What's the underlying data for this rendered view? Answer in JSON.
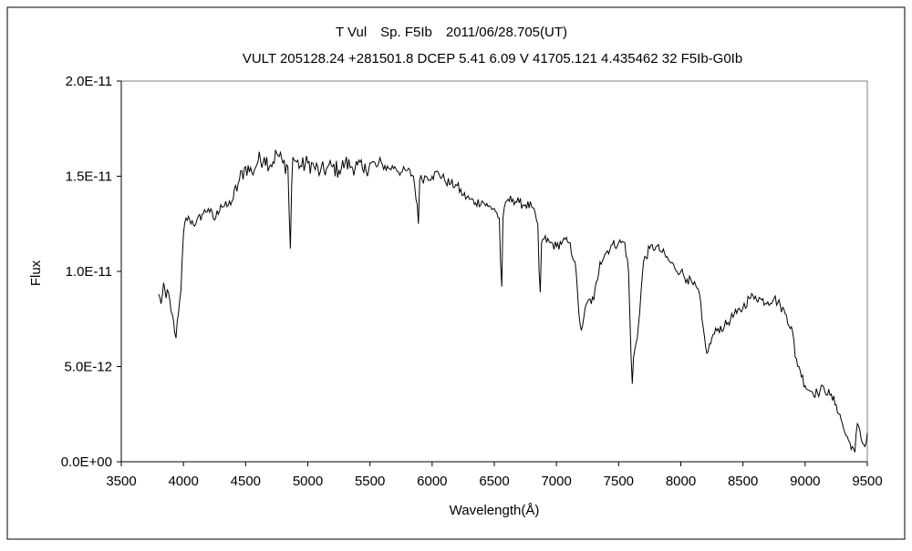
{
  "chart_data": {
    "type": "line",
    "title": "T Vul　Sp. F5Ib　2011/06/28.705(UT)",
    "subtitle": "VULT 205128.24 +281501.8 DCEP 5.41 6.09 V 41705.121 4.435462 32 F5Ib-G0Ib",
    "xlabel": "Wavelength(Å)",
    "ylabel": "Flux",
    "xlim": [
      3500,
      9500
    ],
    "ylim": [
      0,
      2e-11
    ],
    "x_ticks": [
      3500,
      4000,
      4500,
      5000,
      5500,
      6000,
      6500,
      7000,
      7500,
      8000,
      8500,
      9000,
      9500
    ],
    "x_tick_labels": [
      "3500",
      "4000",
      "4500",
      "5000",
      "5500",
      "6000",
      "6500",
      "7000",
      "7500",
      "8000",
      "8500",
      "9000",
      "9500"
    ],
    "y_ticks": [
      0,
      5e-12,
      1e-11,
      1.5e-11,
      2e-11
    ],
    "y_tick_labels": [
      "0.0E+00",
      "5.0E-12",
      "1.0E-11",
      "1.5E-11",
      "2.0E-11"
    ],
    "grid": false,
    "legend": "none",
    "series_color": "#000000",
    "series": [
      {
        "x": [
          3800,
          3820,
          3840,
          3860,
          3880,
          3900,
          3920,
          3940,
          3960,
          3980,
          4000,
          4020,
          4050,
          4100,
          4150,
          4200,
          4250,
          4300,
          4350,
          4400,
          4450,
          4500,
          4550,
          4600,
          4650,
          4700,
          4750,
          4800,
          4840,
          4850,
          4860,
          4870,
          4880,
          4900,
          4950,
          5000,
          5050,
          5100,
          5150,
          5200,
          5250,
          5300,
          5350,
          5400,
          5450,
          5500,
          5550,
          5600,
          5650,
          5700,
          5750,
          5800,
          5850,
          5880,
          5890,
          5900,
          5950,
          6000,
          6050,
          6100,
          6150,
          6200,
          6250,
          6300,
          6350,
          6400,
          6450,
          6500,
          6540,
          6550,
          6560,
          6570,
          6600,
          6650,
          6700,
          6750,
          6800,
          6850,
          6860,
          6870,
          6880,
          6900,
          6950,
          7000,
          7050,
          7100,
          7150,
          7180,
          7200,
          7220,
          7250,
          7300,
          7350,
          7400,
          7450,
          7500,
          7550,
          7580,
          7600,
          7610,
          7620,
          7650,
          7700,
          7750,
          7800,
          7850,
          7900,
          7950,
          8000,
          8050,
          8100,
          8150,
          8170,
          8200,
          8220,
          8250,
          8300,
          8350,
          8400,
          8450,
          8500,
          8550,
          8600,
          8650,
          8700,
          8750,
          8800,
          8850,
          8900,
          8920,
          8950,
          9000,
          9050,
          9100,
          9150,
          9200,
          9250,
          9300,
          9320,
          9350,
          9380,
          9400,
          9420,
          9450,
          9480,
          9500
        ],
        "y": [
          8.8e-12,
          8.3e-12,
          9.4e-12,
          8.6e-12,
          8.9e-12,
          7.9e-12,
          7.4e-12,
          6.5e-12,
          7.8e-12,
          9e-12,
          1.2e-11,
          1.28e-11,
          1.27e-11,
          1.25e-11,
          1.3e-11,
          1.33e-11,
          1.27e-11,
          1.35e-11,
          1.34e-11,
          1.38e-11,
          1.48e-11,
          1.55e-11,
          1.52e-11,
          1.58e-11,
          1.6e-11,
          1.56e-11,
          1.62e-11,
          1.57e-11,
          1.55e-11,
          1.3e-11,
          1.12e-11,
          1.45e-11,
          1.6e-11,
          1.58e-11,
          1.55e-11,
          1.57e-11,
          1.55e-11,
          1.52e-11,
          1.54e-11,
          1.55e-11,
          1.53e-11,
          1.57e-11,
          1.55e-11,
          1.56e-11,
          1.52e-11,
          1.57e-11,
          1.55e-11,
          1.56e-11,
          1.54e-11,
          1.55e-11,
          1.52e-11,
          1.53e-11,
          1.5e-11,
          1.35e-11,
          1.25e-11,
          1.48e-11,
          1.5e-11,
          1.5e-11,
          1.52e-11,
          1.48e-11,
          1.46e-11,
          1.45e-11,
          1.4e-11,
          1.38e-11,
          1.36e-11,
          1.37e-11,
          1.34e-11,
          1.33e-11,
          1.28e-11,
          1.05e-11,
          9.2e-12,
          1.28e-11,
          1.37e-11,
          1.38e-11,
          1.36e-11,
          1.35e-11,
          1.34e-11,
          1.25e-11,
          1e-11,
          8.9e-12,
          1.15e-11,
          1.17e-11,
          1.15e-11,
          1.13e-11,
          1.16e-11,
          1.15e-11,
          1.05e-11,
          7.8e-12,
          6.9e-12,
          7.6e-12,
          8.4e-12,
          8.5e-12,
          1.05e-11,
          1.1e-11,
          1.14e-11,
          1.15e-11,
          1.15e-11,
          1e-11,
          5.5e-12,
          4.1e-12,
          5.5e-12,
          6.5e-12,
          1.05e-11,
          1.12e-11,
          1.13e-11,
          1.1e-11,
          1.06e-11,
          1.02e-11,
          1e-11,
          9.6e-12,
          9.3e-12,
          8.8e-12,
          7.5e-12,
          6e-12,
          5.8e-12,
          6.5e-12,
          7e-12,
          7.1e-12,
          7.5e-12,
          7.8e-12,
          8.1e-12,
          8.6e-12,
          8.7e-12,
          8.5e-12,
          8.4e-12,
          8.6e-12,
          8.2e-12,
          7.7e-12,
          6.8e-12,
          5.5e-12,
          5e-12,
          4e-12,
          3.7e-12,
          3.6e-12,
          3.9e-12,
          3.5e-12,
          3e-12,
          2e-12,
          1.5e-12,
          1.1e-12,
          8e-13,
          5e-13,
          2e-12,
          1.2e-12,
          8e-13,
          1.5e-12
        ]
      }
    ]
  }
}
